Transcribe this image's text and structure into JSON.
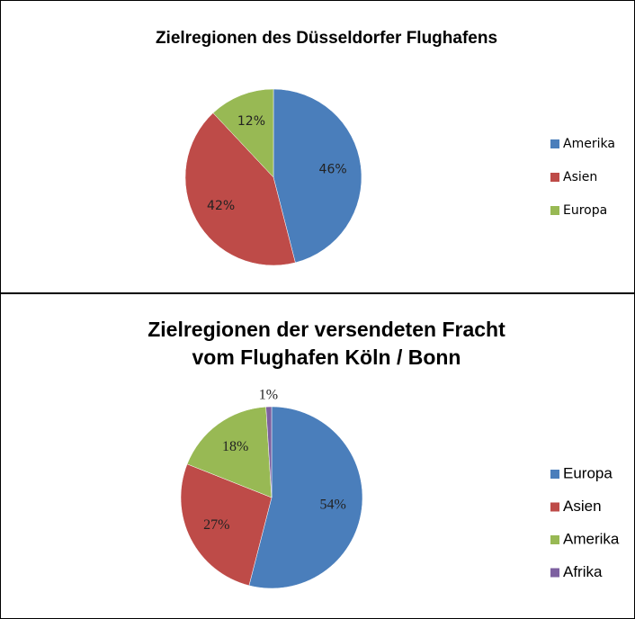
{
  "chart_data": [
    {
      "type": "pie",
      "title": "Zielregionen des Düsseldorfer Flughafens",
      "categories": [
        "Amerika",
        "Asien",
        "Europa"
      ],
      "values": [
        46,
        42,
        12
      ],
      "value_labels": [
        "46%",
        "42%",
        "12%"
      ],
      "colors": [
        "#4a7ebb",
        "#be4b48",
        "#98b954"
      ],
      "legend": "right"
    },
    {
      "type": "pie",
      "title": "Zielregionen der versendeten Fracht vom Flughafen Köln / Bonn",
      "categories": [
        "Europa",
        "Asien",
        "Amerika",
        "Afrika"
      ],
      "values": [
        54,
        27,
        18,
        1
      ],
      "value_labels": [
        "54%",
        "27%",
        "18%",
        "1%"
      ],
      "colors": [
        "#4a7ebb",
        "#be4b48",
        "#98b954",
        "#7d60a0"
      ],
      "legend": "right"
    }
  ]
}
